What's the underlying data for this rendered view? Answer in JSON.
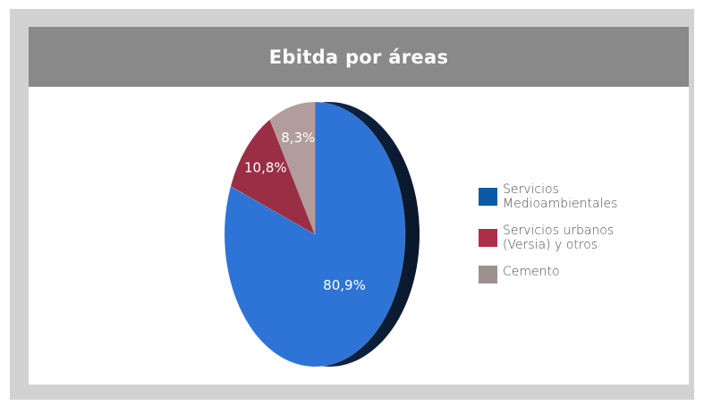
{
  "title": "Ebitda por áreas",
  "chart_data": {
    "type": "pie",
    "categories": [
      "Servicios Medioambientales",
      "Servicios urbanos (Versia) y otros",
      "Cemento"
    ],
    "values": [
      80.9,
      10.8,
      8.3
    ],
    "value_labels": [
      "80,9%",
      "10,8%",
      "8,3%"
    ],
    "colors": [
      "#2e73d6",
      "#9a2e45",
      "#b39c9c"
    ],
    "legend_placement": "right",
    "legend": [
      {
        "line1": "Servicios",
        "line2": "Medioambientales",
        "color": "#0a5aa6"
      },
      {
        "line1": "Servicios urbanos",
        "line2": "(Versia) y otros",
        "color": "#b02e48"
      },
      {
        "line1": "Cemento",
        "line2": "",
        "color": "#9e8f8f"
      }
    ]
  }
}
